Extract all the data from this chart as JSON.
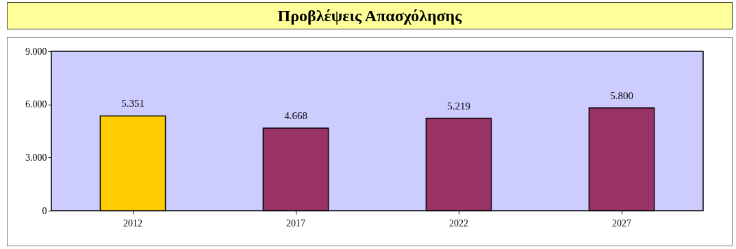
{
  "chart_data": {
    "type": "bar",
    "title": "Προβλέψεις Απασχόλησης",
    "categories": [
      "2012",
      "2017",
      "2022",
      "2027"
    ],
    "values": [
      5351,
      4668,
      5219,
      5800
    ],
    "colors": [
      "#ffcc00",
      "#993366",
      "#993366",
      "#993366"
    ],
    "value_labels": [
      "5.351",
      "4.668",
      "5.219",
      "5.800"
    ],
    "ylim": [
      0,
      9000
    ],
    "yticks": [
      0,
      {
        "value": 3000,
        "label": "3.000"
      },
      {
        "value": 6000,
        "label": "6.000"
      },
      {
        "value": 9000,
        "label": "9.000"
      }
    ],
    "grid": false
  }
}
